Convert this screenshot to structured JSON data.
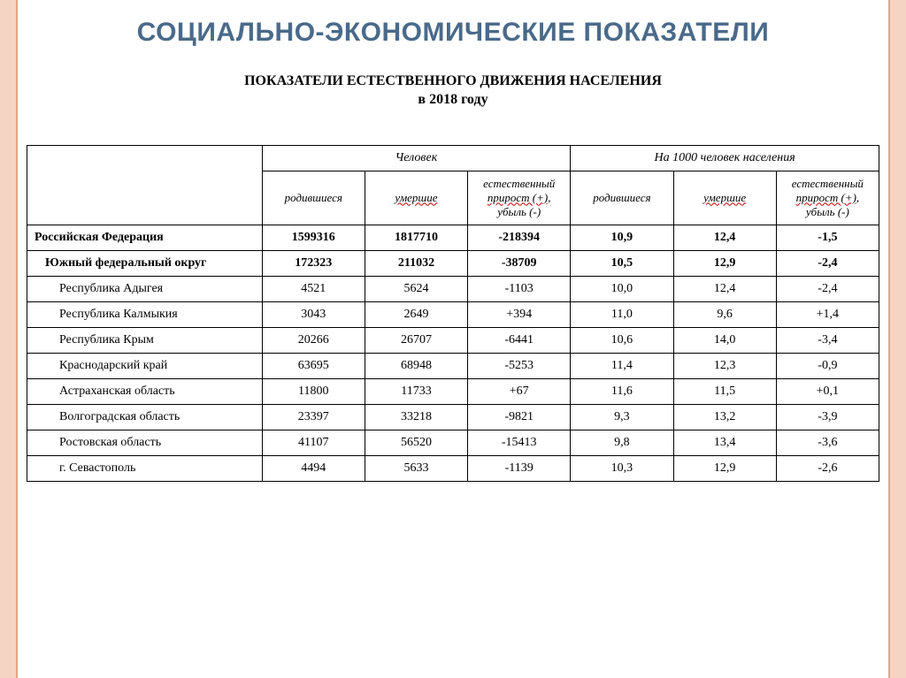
{
  "main_title": "СОЦИАЛЬНО-ЭКОНОМИЧЕСКИЕ ПОКАЗАТЕЛИ",
  "sub_title_line1": "ПОКАЗАТЕЛИ ЕСТЕСТВЕННОГО ДВИЖЕНИЯ НАСЕЛЕНИЯ",
  "sub_title_line2": "в 2018 году",
  "table": {
    "header": {
      "group1": "Человек",
      "group2": "На 1000 человек населения",
      "col1": "родившиеся",
      "col2": "умершие",
      "col3a": "естественный",
      "col3b": "прирост (+),",
      "col3c": "убыль (-)"
    },
    "rows": [
      {
        "region": "Российская Федерация",
        "bold": true,
        "indent": 0,
        "v1": "1599316",
        "v2": "1817710",
        "v3": "-218394",
        "v4": "10,9",
        "v5": "12,4",
        "v6": "-1,5"
      },
      {
        "region": "Южный федеральный округ",
        "bold": true,
        "indent": 1,
        "v1": "172323",
        "v2": "211032",
        "v3": "-38709",
        "v4": "10,5",
        "v5": "12,9",
        "v6": "-2,4"
      },
      {
        "region": "Республика Адыгея",
        "bold": false,
        "indent": 2,
        "v1": "4521",
        "v2": "5624",
        "v3": "-1103",
        "v4": "10,0",
        "v5": "12,4",
        "v6": "-2,4"
      },
      {
        "region": "Республика Калмыкия",
        "bold": false,
        "indent": 2,
        "v1": "3043",
        "v2": "2649",
        "v3": "+394",
        "v4": "11,0",
        "v5": "9,6",
        "v6": "+1,4"
      },
      {
        "region": "Республика Крым",
        "bold": false,
        "indent": 2,
        "v1": "20266",
        "v2": "26707",
        "v3": "-6441",
        "v4": "10,6",
        "v5": "14,0",
        "v6": "-3,4"
      },
      {
        "region": "Краснодарский край",
        "bold": false,
        "indent": 2,
        "v1": "63695",
        "v2": "68948",
        "v3": "-5253",
        "v4": "11,4",
        "v5": "12,3",
        "v6": "-0,9"
      },
      {
        "region": "Астраханская область",
        "bold": false,
        "indent": 2,
        "v1": "11800",
        "v2": "11733",
        "v3": "+67",
        "v4": "11,6",
        "v5": "11,5",
        "v6": "+0,1"
      },
      {
        "region": "Волгоградская область",
        "bold": false,
        "indent": 2,
        "v1": "23397",
        "v2": "33218",
        "v3": "-9821",
        "v4": "9,3",
        "v5": "13,2",
        "v6": "-3,9"
      },
      {
        "region": "Ростовская область",
        "bold": false,
        "indent": 2,
        "v1": "41107",
        "v2": "56520",
        "v3": "-15413",
        "v4": "9,8",
        "v5": "13,4",
        "v6": "-3,6"
      },
      {
        "region": "г. Севастополь",
        "bold": false,
        "indent": 2,
        "v1": "4494",
        "v2": "5633",
        "v3": "-1139",
        "v4": "10,3",
        "v5": "12,9",
        "v6": "-2,6"
      }
    ],
    "styling": {
      "border_color": "#000000",
      "font_family": "Times New Roman",
      "body_fontsize": 14,
      "header_fontsize": 13,
      "title_color": "#4a6a8a",
      "squiggle_color": "#c00000",
      "side_border_bg": "#f5d4c4",
      "side_border_edge": "#e8a580"
    }
  }
}
